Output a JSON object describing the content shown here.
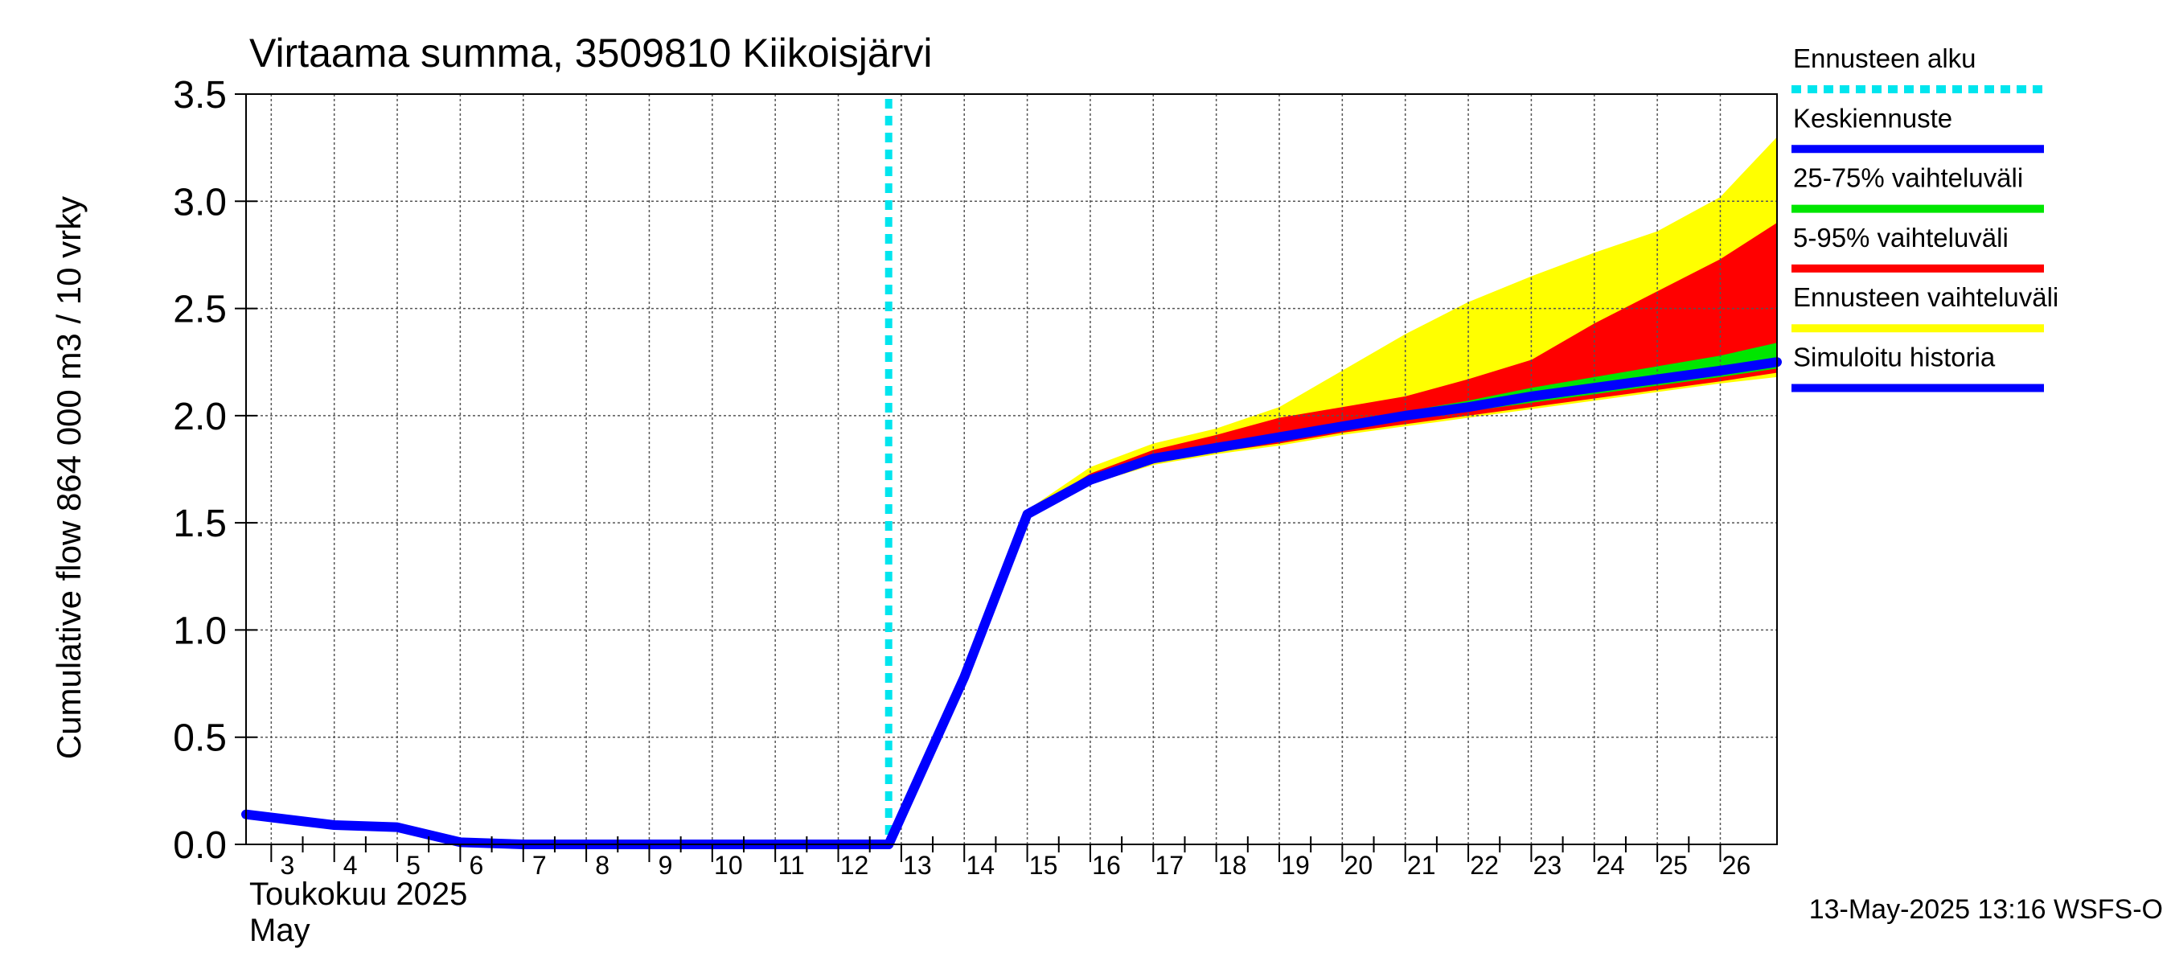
{
  "chart_data": {
    "type": "area",
    "title": "Virtaama summa, 3509810 Kiikoisjärvi",
    "ylabel": "Cumulative flow     864 000 m3 / 10 vrky",
    "ylim": [
      0,
      3.5
    ],
    "yticks": [
      "0.0",
      "0.5",
      "1.0",
      "1.5",
      "2.0",
      "2.5",
      "3.0",
      "3.5"
    ],
    "x_range": [
      2.6,
      26.9
    ],
    "xticks": [
      "3",
      "4",
      "5",
      "6",
      "7",
      "8",
      "9",
      "10",
      "11",
      "12",
      "13",
      "14",
      "15",
      "16",
      "17",
      "18",
      "19",
      "20",
      "21",
      "22",
      "23",
      "24",
      "25",
      "26"
    ],
    "x_month_fi": "Toukokuu  2025",
    "x_month_en": "May",
    "forecast_start_x": 12.8,
    "grid": true,
    "legend_position": "right",
    "footer": "13-May-2025 13:16 WSFS-O",
    "legend": [
      {
        "label": "Ennusteen alku",
        "color": "#00e5ee",
        "style": "dashed"
      },
      {
        "label": "Keskiennuste",
        "color": "#0000ff",
        "style": "solid"
      },
      {
        "label": "25-75% vaihteluväli",
        "color": "#00e600",
        "style": "solid"
      },
      {
        "label": "5-95% vaihteluväli",
        "color": "#ff0000",
        "style": "solid"
      },
      {
        "label": "Ennusteen vaihteluväli",
        "color": "#ffff00",
        "style": "solid"
      },
      {
        "label": "Simuloitu historia",
        "color": "#0000ff",
        "style": "solid"
      }
    ],
    "series": [
      {
        "name": "Simuloitu historia",
        "color": "#0000ff",
        "x": [
          2.6,
          4,
          5,
          6,
          7,
          8,
          9,
          10,
          11,
          12,
          12.8
        ],
        "y": [
          0.14,
          0.09,
          0.08,
          0.01,
          0.0,
          0.0,
          0.0,
          0.0,
          0.0,
          0.0,
          0.0
        ]
      },
      {
        "name": "Keskiennuste",
        "color": "#0000ff",
        "x": [
          12.8,
          14,
          15,
          16,
          17,
          18,
          19,
          20,
          21,
          22,
          23,
          24,
          25,
          26,
          26.9
        ],
        "y": [
          0.0,
          0.78,
          1.54,
          1.7,
          1.8,
          1.85,
          1.9,
          1.95,
          2.0,
          2.04,
          2.09,
          2.13,
          2.17,
          2.21,
          2.25
        ]
      }
    ],
    "bands": [
      {
        "name": "Ennusteen vaihteluväli",
        "color": "#ffff00",
        "x": [
          15,
          16,
          17,
          18,
          19,
          20,
          21,
          22,
          23,
          24,
          25,
          26,
          26.9
        ],
        "lower": [
          1.54,
          1.68,
          1.77,
          1.82,
          1.86,
          1.91,
          1.95,
          1.99,
          2.03,
          2.07,
          2.11,
          2.15,
          2.18
        ],
        "upper": [
          1.56,
          1.76,
          1.87,
          1.94,
          2.04,
          2.21,
          2.38,
          2.53,
          2.65,
          2.76,
          2.86,
          3.02,
          3.3
        ]
      },
      {
        "name": "5-95% vaihteluväli",
        "color": "#ff0000",
        "x": [
          15,
          16,
          17,
          18,
          19,
          20,
          21,
          22,
          23,
          24,
          25,
          26,
          26.9
        ],
        "lower": [
          1.54,
          1.69,
          1.78,
          1.83,
          1.87,
          1.92,
          1.96,
          2.0,
          2.04,
          2.08,
          2.12,
          2.16,
          2.2
        ],
        "upper": [
          1.55,
          1.73,
          1.84,
          1.91,
          1.99,
          2.04,
          2.09,
          2.17,
          2.26,
          2.43,
          2.58,
          2.73,
          2.9
        ]
      },
      {
        "name": "25-75% vaihteluväli",
        "color": "#00e600",
        "x": [
          15,
          16,
          17,
          18,
          19,
          20,
          21,
          22,
          23,
          24,
          25,
          26,
          26.9
        ],
        "lower": [
          1.54,
          1.69,
          1.79,
          1.84,
          1.88,
          1.93,
          1.98,
          2.02,
          2.06,
          2.1,
          2.14,
          2.18,
          2.22
        ],
        "upper": [
          1.55,
          1.71,
          1.82,
          1.87,
          1.92,
          1.97,
          2.02,
          2.07,
          2.13,
          2.18,
          2.23,
          2.28,
          2.34
        ]
      }
    ]
  }
}
